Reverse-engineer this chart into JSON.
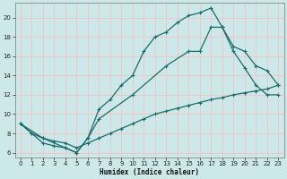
{
  "xlabel": "Humidex (Indice chaleur)",
  "bg_color": "#cce8e8",
  "grid_color": "#f0c8c8",
  "line_color": "#1a6b6b",
  "xlim": [
    -0.5,
    23.5
  ],
  "ylim": [
    5.5,
    21.5
  ],
  "xticks": [
    0,
    1,
    2,
    3,
    4,
    5,
    6,
    7,
    8,
    9,
    10,
    11,
    12,
    13,
    14,
    15,
    16,
    17,
    18,
    19,
    20,
    21,
    22,
    23
  ],
  "yticks": [
    6,
    8,
    10,
    12,
    14,
    16,
    18,
    20
  ],
  "line1_x": [
    0,
    1,
    2,
    3,
    4,
    5,
    6,
    7,
    8,
    9,
    10,
    11,
    12,
    13,
    14,
    15,
    16,
    17,
    18,
    19,
    20,
    21,
    22,
    23
  ],
  "line1_y": [
    9,
    8,
    7,
    6.7,
    6.5,
    6,
    7.5,
    10.5,
    11.5,
    13,
    14,
    16.5,
    18,
    18.5,
    19.5,
    20.2,
    20.5,
    21,
    19,
    16.5,
    14.8,
    13,
    12,
    12
  ],
  "line2_x": [
    0,
    2,
    4,
    5,
    6,
    7,
    10,
    13,
    15,
    16,
    17,
    18,
    19,
    20,
    21,
    22,
    23
  ],
  "line2_y": [
    9,
    7.5,
    6.5,
    6,
    7.5,
    9.5,
    12,
    15,
    16.5,
    16.5,
    19,
    19,
    17,
    16.5,
    15,
    14.5,
    13
  ],
  "line3_x": [
    0,
    1,
    2,
    3,
    4,
    5,
    6,
    7,
    8,
    9,
    10,
    11,
    12,
    13,
    14,
    15,
    16,
    17,
    18,
    19,
    20,
    21,
    22,
    23
  ],
  "line3_y": [
    9,
    8,
    7.5,
    7.2,
    7,
    6.5,
    7,
    7.5,
    8,
    8.5,
    9,
    9.5,
    10,
    10.3,
    10.6,
    10.9,
    11.2,
    11.5,
    11.7,
    12,
    12.2,
    12.4,
    12.6,
    13
  ]
}
